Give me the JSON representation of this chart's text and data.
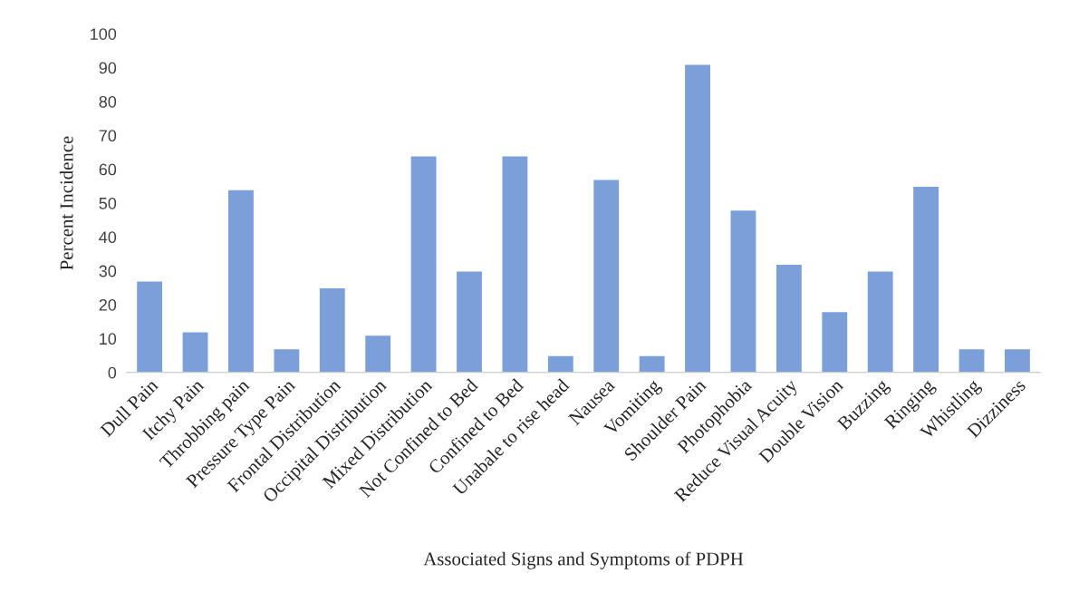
{
  "chart_data": {
    "type": "bar",
    "xlabel": "Associated Signs and Symptoms of PDPH",
    "ylabel": "Percent Incidence",
    "categories": [
      "Dull Pain",
      "Itchy Pain",
      "Throbbing pain",
      "Pressure Type Pain",
      "Frontal Distribution",
      "Occipital Distribution",
      "Mixed Distribution",
      "Not Confined to Bed",
      "Confined to Bed",
      "Unabale to rise head",
      "Nausea",
      "Vomiting",
      "Shoulder Pain",
      "Photophobia",
      "Reduce Visual Acuity",
      "Double Vision",
      "Buzzing",
      "Ringing",
      "Whistling",
      "Dizziness"
    ],
    "values": [
      27,
      12,
      54,
      7,
      25,
      11,
      64,
      30,
      64,
      5,
      57,
      5,
      91,
      48,
      32,
      18,
      30,
      55,
      7,
      7
    ],
    "color": "#7b9fd8",
    "ylim": [
      0,
      100
    ],
    "yticks": [
      0,
      10,
      20,
      30,
      40,
      50,
      60,
      70,
      80,
      90,
      100
    ],
    "grid": false
  }
}
